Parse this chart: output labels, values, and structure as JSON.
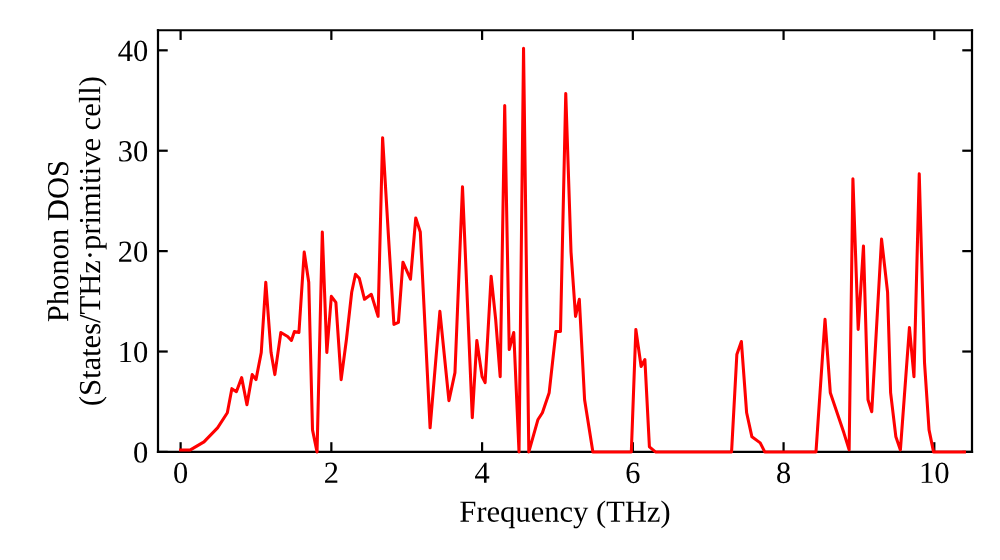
{
  "chart_data": {
    "type": "line",
    "xlabel": "Frequency (THz)",
    "ylabel": "Phonon DOS\n(States/THz·primitive cell)",
    "xlim": [
      -0.3,
      10.5
    ],
    "xticks": [
      0,
      2,
      4,
      6,
      8,
      10
    ],
    "ylim": [
      0,
      42
    ],
    "yticks": [
      0,
      10,
      20,
      30,
      40
    ],
    "grid": false,
    "marker": "none",
    "line_style": "solid",
    "series": [
      {
        "color": "#ff0000",
        "x": [
          0,
          0.13,
          0.31,
          0.49,
          0.62,
          0.68,
          0.74,
          0.81,
          0.88,
          0.95,
          1.0,
          1.07,
          1.13,
          1.2,
          1.25,
          1.33,
          1.42,
          1.47,
          1.51,
          1.57,
          1.64,
          1.7,
          1.75,
          1.81,
          1.88,
          1.94,
          2.0,
          2.06,
          2.13,
          2.2,
          2.27,
          2.32,
          2.37,
          2.44,
          2.53,
          2.62,
          2.68,
          2.76,
          2.83,
          2.89,
          2.95,
          3.05,
          3.12,
          3.18,
          3.31,
          3.44,
          3.56,
          3.64,
          3.74,
          3.87,
          3.93,
          4.0,
          4.04,
          4.12,
          4.18,
          4.24,
          4.3,
          4.36,
          4.42,
          4.49,
          4.55,
          4.62,
          4.74,
          4.8,
          4.89,
          4.98,
          5.04,
          5.11,
          5.18,
          5.24,
          5.29,
          5.36,
          5.47,
          5.98,
          6.04,
          6.11,
          6.16,
          6.22,
          6.3,
          7.31,
          7.38,
          7.44,
          7.51,
          7.58,
          7.69,
          7.75,
          8.43,
          8.55,
          8.62,
          8.71,
          8.8,
          8.87,
          8.92,
          8.99,
          9.06,
          9.12,
          9.17,
          9.3,
          9.38,
          9.42,
          9.49,
          9.55,
          9.67,
          9.73,
          9.8,
          9.87,
          9.93,
          9.99,
          10.4
        ],
        "values": [
          0.2,
          0.2,
          1,
          2.4,
          3.9,
          6.3,
          6,
          7.4,
          4.7,
          7.7,
          7.2,
          9.9,
          16.9,
          9.9,
          7.7,
          11.9,
          11.5,
          11.1,
          12,
          11.9,
          19.9,
          16.9,
          2.2,
          0,
          21.9,
          9.9,
          15.5,
          14.9,
          7.2,
          11.2,
          15.9,
          17.7,
          17.3,
          15.2,
          15.7,
          13.5,
          31.3,
          21.2,
          12.7,
          12.9,
          18.9,
          17.2,
          23.3,
          21.9,
          2.4,
          14,
          5.1,
          7.9,
          26.4,
          3.4,
          11.1,
          7.5,
          6.9,
          17.5,
          13.2,
          7.5,
          34.5,
          10.2,
          11.9,
          0,
          40.2,
          0,
          3.2,
          3.9,
          5.9,
          12,
          12,
          35.7,
          19.9,
          13.5,
          15.2,
          5.2,
          0,
          0,
          12.2,
          8.5,
          9.2,
          0.5,
          0,
          0,
          9.7,
          11,
          3.9,
          1.5,
          0.9,
          0,
          0,
          13.2,
          5.9,
          3.9,
          1.9,
          0.2,
          27.2,
          12.2,
          20.5,
          5.2,
          4,
          21.2,
          15.9,
          5.9,
          1.5,
          0.2,
          12.4,
          7.5,
          27.7,
          8.9,
          2.2,
          0,
          0
        ]
      }
    ]
  }
}
